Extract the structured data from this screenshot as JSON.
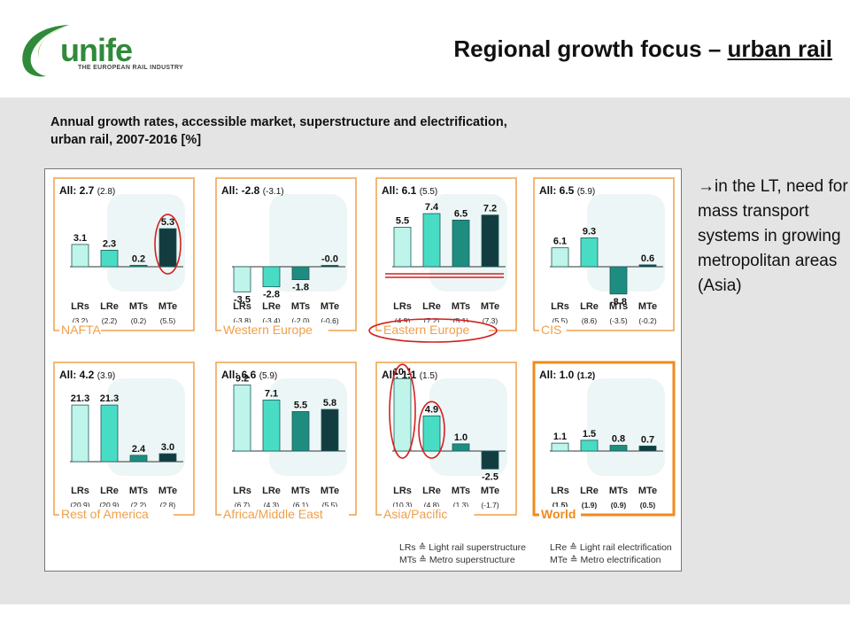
{
  "header": {
    "logo_text": "unife",
    "logo_subtitle": "THE EUROPEAN RAIL INDUSTRY",
    "title_part1": "Regional growth focus – ",
    "title_part2": "urban rail"
  },
  "subtitle_line1": "Annual growth rates, accessible market, superstructure and electrification,",
  "subtitle_line2": "urban rail, 2007-2016 [%]",
  "side_note": {
    "arrow": "→",
    "text": "in the LT, need for mass transport systems in growing metropolitan areas (Asia)"
  },
  "legend": {
    "lrs": "LRs ≙ Light rail superstructure",
    "mts": "MTs ≙ Metro superstructure",
    "lre": "LRe ≙ Light rail electrification",
    "mte": "MTe ≙ Metro electrification"
  },
  "colors": {
    "frame": "#f0a04a",
    "frame_world": "#f08a1c",
    "lrs": "#bff4ea",
    "lre": "#48dcc4",
    "mts": "#1f8c80",
    "mte": "#123c40",
    "highlight": "#d42020",
    "band": "#e4e4e4"
  },
  "chart_data": {
    "type": "bar",
    "categories": [
      "LRs",
      "LRe",
      "MTs",
      "MTe"
    ],
    "panels": [
      {
        "region": "NAFTA",
        "all_label": "All: 2.7",
        "all_prev": "(2.8)",
        "values": [
          3.1,
          2.3,
          0.2,
          5.3
        ],
        "value_labels": [
          "3.1",
          "2.3",
          "0.2",
          "5.3"
        ],
        "prev": [
          "(3.2)",
          "(2.2)",
          "(0.2)",
          "(5.5)"
        ],
        "highlight_bars": [
          3
        ],
        "highlight_region": false
      },
      {
        "region": "Western Europe",
        "all_label": "All: -2.8",
        "all_prev": "(-3.1)",
        "values": [
          -3.5,
          -2.8,
          -1.8,
          -0.0
        ],
        "value_labels": [
          "-3.5",
          "-2.8",
          "-1.8",
          "-0.0"
        ],
        "prev": [
          "(-3.8)",
          "(-3.4)",
          "(-2.0)",
          "(-0.6)"
        ],
        "highlight_bars": [],
        "highlight_region": false
      },
      {
        "region": "Eastern Europe",
        "all_label": "All: 6.1",
        "all_prev": "(5.5)",
        "values": [
          5.5,
          7.4,
          6.5,
          7.2
        ],
        "value_labels": [
          "5.5",
          "7.4",
          "6.5",
          "7.2"
        ],
        "prev": [
          "(4.9)",
          "(7.2)",
          "(5.1)",
          "(7.3)"
        ],
        "highlight_bars": [],
        "highlight_region": true
      },
      {
        "region": "CIS",
        "all_label": "All: 6.5",
        "all_prev": "(5.9)",
        "values": [
          6.1,
          9.3,
          -8.8,
          0.6
        ],
        "value_labels": [
          "6.1",
          "9.3",
          "-8.8",
          "0.6"
        ],
        "prev": [
          "(5.5)",
          "(8.6)",
          "(-3.5)",
          "(-0.2)"
        ],
        "highlight_bars": [],
        "highlight_region": false
      },
      {
        "region": "Rest of America",
        "all_label": "All: 4.2",
        "all_prev": "(3.9)",
        "values": [
          21.3,
          21.3,
          2.4,
          3.0
        ],
        "value_labels": [
          "21.3",
          "21.3",
          "2.4",
          "3.0"
        ],
        "prev": [
          "(20.9)",
          "(20.9)",
          "(2.2)",
          "(2.8)"
        ],
        "highlight_bars": [],
        "highlight_region": false
      },
      {
        "region": "Africa/Middle East",
        "all_label": "All: 6.6",
        "all_prev": "(5.9)",
        "values": [
          9.2,
          7.1,
          5.5,
          5.8
        ],
        "value_labels": [
          "9.2",
          "7.1",
          "5.5",
          "5.8"
        ],
        "prev": [
          "(6.7)",
          "(4.3)",
          "(6.1)",
          "(5.5)"
        ],
        "highlight_bars": [],
        "highlight_region": false
      },
      {
        "region": "Asia/Pacific",
        "all_label": "All: 1.1",
        "all_prev": "(1.5)",
        "values": [
          10.1,
          4.9,
          1.0,
          -2.5
        ],
        "value_labels": [
          "10.1",
          "4.9",
          "1.0",
          "-2.5"
        ],
        "prev": [
          "(10.3)",
          "(4.8)",
          "(1.3)",
          "(-1.7)"
        ],
        "highlight_bars": [
          0,
          1
        ],
        "highlight_region": false
      },
      {
        "region": "World",
        "all_label": "All: 1.0",
        "all_prev": "(1.2)",
        "values": [
          1.1,
          1.5,
          0.8,
          0.7
        ],
        "value_labels": [
          "1.1",
          "1.5",
          "0.8",
          "0.7"
        ],
        "prev": [
          "(1.5)",
          "(1.9)",
          "(0.9)",
          "(0.5)"
        ],
        "highlight_bars": [],
        "highlight_region": false,
        "bold": true
      }
    ]
  }
}
